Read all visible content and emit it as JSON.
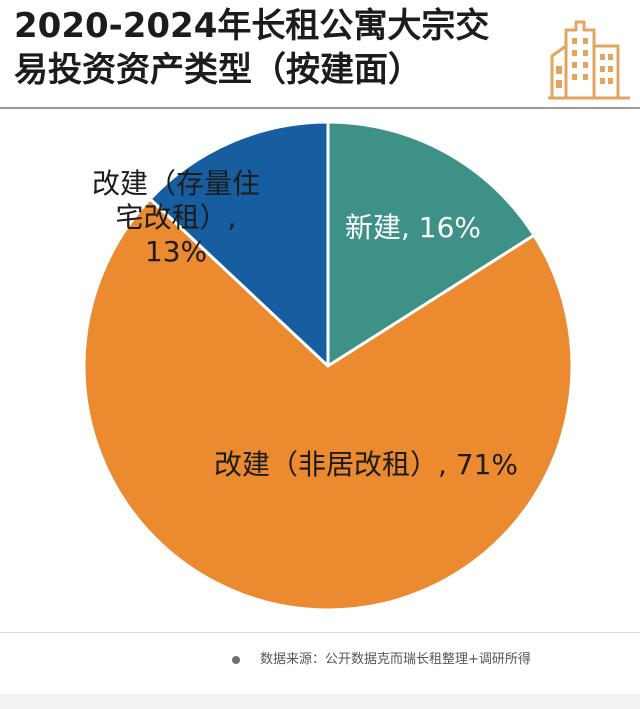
{
  "title": {
    "line1": "2020-2024年长租公寓大宗交",
    "line2": "易投资资产类型（按建面）"
  },
  "chart_data": {
    "type": "pie",
    "title": "2020-2024年长租公寓大宗交易投资资产类型（按建面）",
    "slices": [
      {
        "name": "新建",
        "value": 16,
        "color": "#3d9187",
        "label_lines": [
          "新建, 16%"
        ],
        "label_color": "#ffffff"
      },
      {
        "name": "改建（非居改租）",
        "value": 71,
        "color": "#ec8a30",
        "label_lines": [
          "改建（非居改租）, 71%"
        ],
        "label_color": "#1c1c1c"
      },
      {
        "name": "改建（存量住宅改租）",
        "value": 13,
        "color": "#175ea1",
        "label_lines": [
          "改建（存量住",
          "宅改租）,",
          "13%"
        ],
        "label_color": "#1c1c1c"
      }
    ],
    "start_angle_deg": 0,
    "direction": "clockwise",
    "legend": "none"
  },
  "icons": {
    "building": "building-icon"
  },
  "colors": {
    "building_icon": "#e3a55e",
    "rule": "#9a9a9a"
  },
  "footer": {
    "source": "数据来源：公开数据克而瑞长租整理+调研所得"
  }
}
